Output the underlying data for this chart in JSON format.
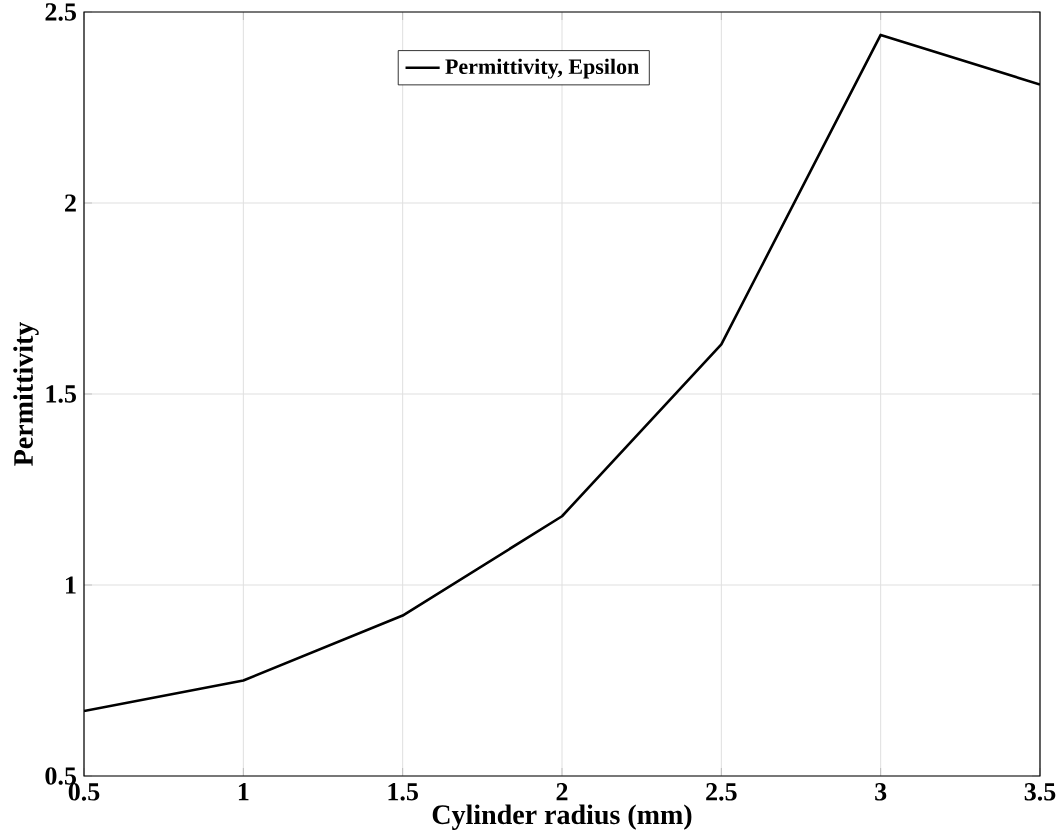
{
  "chart_data": {
    "type": "line",
    "xlabel": "Cylinder radius (mm)",
    "ylabel": "Permittivity",
    "x": [
      0.5,
      1,
      1.5,
      2,
      2.5,
      3,
      3.5
    ],
    "series": [
      {
        "name": "Permittivity, Epsilon",
        "color": "#000000",
        "values": [
          0.67,
          0.75,
          0.92,
          1.18,
          1.63,
          2.44,
          2.31
        ]
      }
    ],
    "xlim": [
      0.5,
      3.5
    ],
    "ylim": [
      0.5,
      2.5
    ],
    "xticks": [
      0.5,
      1,
      1.5,
      2,
      2.5,
      3,
      3.5
    ],
    "yticks": [
      0.5,
      1,
      1.5,
      2,
      2.5
    ],
    "grid": true,
    "legend": "top",
    "line_style": "solid",
    "marker": "none"
  }
}
